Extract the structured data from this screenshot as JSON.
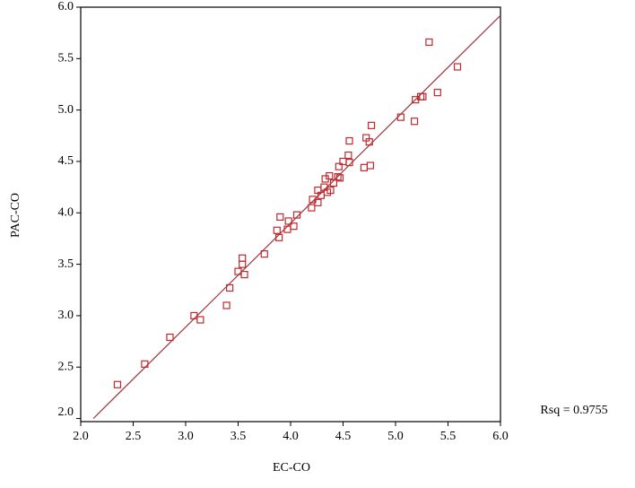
{
  "chart_data": {
    "type": "scatter",
    "x_label": "EC-CO",
    "y_label": "PAC-CO",
    "annotation": "Rsq = 0.9755",
    "color": "#c0282d",
    "x": [
      2.35,
      2.61,
      2.85,
      3.08,
      3.14,
      3.39,
      3.42,
      3.5,
      3.54,
      3.54,
      3.56,
      3.75,
      3.87,
      3.89,
      3.9,
      3.97,
      3.98,
      4.03,
      4.06,
      4.2,
      4.21,
      4.26,
      4.26,
      4.29,
      4.32,
      4.33,
      4.35,
      4.37,
      4.38,
      4.41,
      4.45,
      4.46,
      4.47,
      4.5,
      4.55,
      4.56,
      4.56,
      4.7,
      4.72,
      4.75,
      4.76,
      4.77,
      5.05,
      5.18,
      5.19,
      5.24,
      5.26,
      5.4,
      5.32,
      5.59
    ],
    "values": [
      2.33,
      2.53,
      2.79,
      3.0,
      2.96,
      3.1,
      3.27,
      3.43,
      3.56,
      3.5,
      3.4,
      3.6,
      3.83,
      3.76,
      3.96,
      3.84,
      3.92,
      3.87,
      3.98,
      4.05,
      4.13,
      4.1,
      4.22,
      4.17,
      4.25,
      4.33,
      4.2,
      4.36,
      4.22,
      4.29,
      4.35,
      4.45,
      4.34,
      4.5,
      4.56,
      4.49,
      4.7,
      4.44,
      4.73,
      4.69,
      4.46,
      4.85,
      4.93,
      4.89,
      5.1,
      5.13,
      5.13,
      5.17,
      5.66,
      5.42
    ],
    "fit_line": {
      "x": [
        2.12,
        6.0
      ],
      "y": [
        2.0,
        5.92
      ],
      "color": "#a0404a"
    },
    "xlim": [
      2.0,
      6.0
    ],
    "ylim": [
      1.97,
      6.0
    ],
    "xticks": [
      {
        "value": 2,
        "label": "2.0"
      },
      {
        "value": 2.5,
        "label": "2.5"
      },
      {
        "value": 3,
        "label": "3.0"
      },
      {
        "value": 3.5,
        "label": "3.5"
      },
      {
        "value": 4,
        "label": "4.0"
      },
      {
        "value": 4.5,
        "label": "4.5"
      },
      {
        "value": 5,
        "label": "5.0"
      },
      {
        "value": 5.5,
        "label": "5.5"
      },
      {
        "value": 6,
        "label": "6.0"
      }
    ],
    "yticks": [
      {
        "value": 2,
        "label": "2.0"
      },
      {
        "value": 2.5,
        "label": "2.5"
      },
      {
        "value": 3,
        "label": "3.0"
      },
      {
        "value": 3.5,
        "label": "3.5"
      },
      {
        "value": 4,
        "label": "4.0"
      },
      {
        "value": 4.5,
        "label": "4.5"
      },
      {
        "value": 5,
        "label": "5.0"
      },
      {
        "value": 5.5,
        "label": "5.5"
      },
      {
        "value": 6,
        "label": "6.0"
      }
    ]
  }
}
